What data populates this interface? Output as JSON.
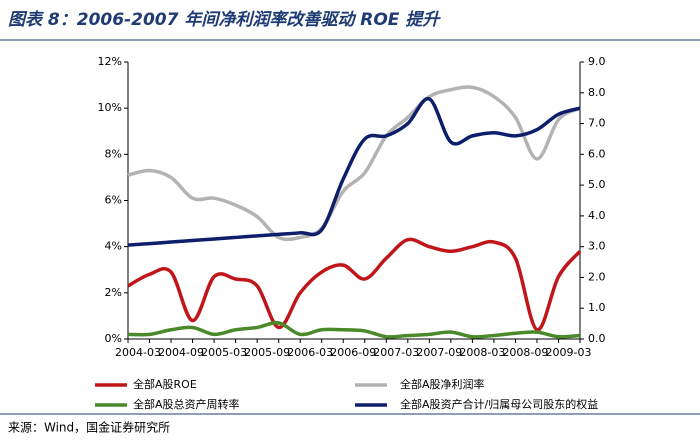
{
  "chart_data": {
    "type": "line",
    "title": "图表 8：2006-2007 年间净利润率改善驱动 ROE 提升",
    "source": "来源：Wind，国金证券研究所",
    "categories": [
      "2004-03",
      null,
      "2004-09",
      null,
      "2005-03",
      null,
      "2005-09",
      null,
      "2006-03",
      null,
      "2006-09",
      null,
      "2007-03",
      null,
      "2007-09",
      null,
      "2008-03",
      null,
      "2008-09",
      null,
      "2009-03",
      null
    ],
    "series": [
      {
        "name": "全部A股ROE",
        "color": "#c0161a",
        "axis": "y",
        "values": [
          2.3,
          2.8,
          2.9,
          0.8,
          2.7,
          2.6,
          2.3,
          0.5,
          2.0,
          2.9,
          3.2,
          2.6,
          3.5,
          4.3,
          4.0,
          3.8,
          4.0,
          4.2,
          3.5,
          0.4,
          2.7,
          3.8
        ]
      },
      {
        "name": "全部A股净利润率",
        "color": "#b3b3b3",
        "axis": "y",
        "values": [
          7.1,
          7.3,
          7.0,
          6.1,
          6.1,
          5.8,
          5.3,
          4.4,
          4.4,
          4.8,
          6.4,
          7.2,
          8.8,
          9.6,
          10.5,
          10.8,
          10.9,
          10.5,
          9.6,
          7.8,
          9.5,
          10.0
        ]
      },
      {
        "name": "全部A股总资产周转率",
        "color": "#4a8a2a",
        "axis": "y",
        "values": [
          0.2,
          0.2,
          0.4,
          0.5,
          0.2,
          0.4,
          0.5,
          0.7,
          0.2,
          0.4,
          0.4,
          0.35,
          0.1,
          0.15,
          0.2,
          0.3,
          0.1,
          0.15,
          0.25,
          0.3,
          0.1,
          0.15
        ]
      },
      {
        "name": "全部A股资产合计/归属母公司股东的权益",
        "color": "#0d1f6b",
        "axis": "y2",
        "values": [
          3.05,
          3.1,
          3.15,
          3.2,
          3.25,
          3.3,
          3.35,
          3.4,
          3.45,
          3.55,
          5.2,
          6.5,
          6.6,
          7.0,
          7.8,
          6.4,
          6.6,
          6.7,
          6.6,
          6.8,
          7.3,
          7.5
        ]
      }
    ],
    "ylim": [
      0,
      12
    ],
    "yticks": [
      {
        "value": 0,
        "label": "0%"
      },
      {
        "value": 2,
        "label": "2%"
      },
      {
        "value": 4,
        "label": "4%"
      },
      {
        "value": 6,
        "label": "6%"
      },
      {
        "value": 8,
        "label": "8%"
      },
      {
        "value": 10,
        "label": "10%"
      },
      {
        "value": 12,
        "label": "12%"
      }
    ],
    "y2lim": [
      0,
      9
    ],
    "y2ticks": [
      {
        "value": 0,
        "label": "0.0"
      },
      {
        "value": 1,
        "label": "1.0"
      },
      {
        "value": 2,
        "label": "2.0"
      },
      {
        "value": 3,
        "label": "3.0"
      },
      {
        "value": 4,
        "label": "4.0"
      },
      {
        "value": 5,
        "label": "5.0"
      },
      {
        "value": 6,
        "label": "6.0"
      },
      {
        "value": 7,
        "label": "7.0"
      },
      {
        "value": 8,
        "label": "8.0"
      },
      {
        "value": 9,
        "label": "9.0"
      }
    ],
    "grid": false,
    "legend": "bottom"
  }
}
